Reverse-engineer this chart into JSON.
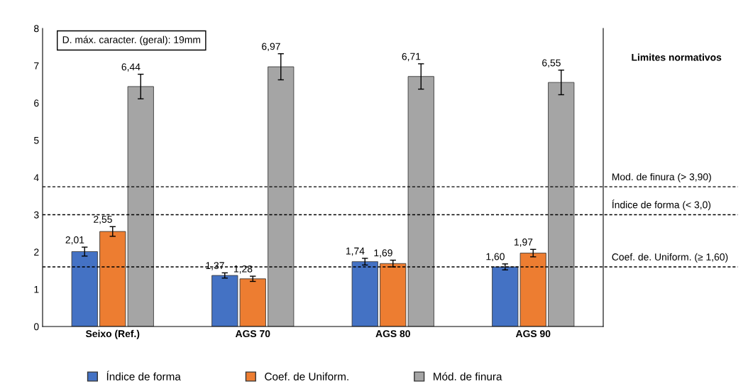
{
  "chart_data": {
    "type": "bar",
    "categories": [
      "Seixo (Ref.)",
      "AGS 70",
      "AGS 80",
      "AGS 90"
    ],
    "series": [
      {
        "name": "Índice de forma",
        "color": "#4472c4",
        "values": [
          2.01,
          1.37,
          1.74,
          1.6
        ],
        "errors": [
          0.12,
          0.07,
          0.09,
          0.08
        ],
        "value_labels": [
          "2,01",
          "1,37",
          "1,74",
          "1,60"
        ]
      },
      {
        "name": "Coef. de Uniform.",
        "color": "#ed7d31",
        "values": [
          2.55,
          1.28,
          1.69,
          1.97
        ],
        "errors": [
          0.13,
          0.07,
          0.09,
          0.1
        ],
        "value_labels": [
          "2,55",
          "1,28",
          "1,69",
          "1,97"
        ]
      },
      {
        "name": "Mód. de finura",
        "color": "#a5a5a5",
        "values": [
          6.44,
          6.97,
          6.71,
          6.55
        ],
        "errors": [
          0.33,
          0.35,
          0.34,
          0.33
        ],
        "value_labels": [
          "6,44",
          "6,97",
          "6,71",
          "6,55"
        ]
      }
    ],
    "ylim": [
      0,
      8
    ],
    "yticks": [
      0,
      1,
      2,
      3,
      4,
      5,
      6,
      7,
      8
    ],
    "grid": false,
    "legend": "bottom",
    "ref_lines": [
      {
        "axis": "y",
        "value": 3.75,
        "label": "Mod. de finura (> 3,90)",
        "color": "#000000",
        "line_style": "dotted"
      },
      {
        "axis": "y",
        "value": 3.0,
        "label": "Índice de forma (< 3,0)",
        "color": "#000000",
        "line_style": "dotted"
      },
      {
        "axis": "y",
        "value": 1.6,
        "label": "Coef. de. Uniform. (≥ 1,60)",
        "color": "#000000",
        "line_style": "dotted"
      }
    ],
    "annotations": [
      "D. máx. caracter. (geral): 19mm",
      "Limites normativos"
    ]
  }
}
